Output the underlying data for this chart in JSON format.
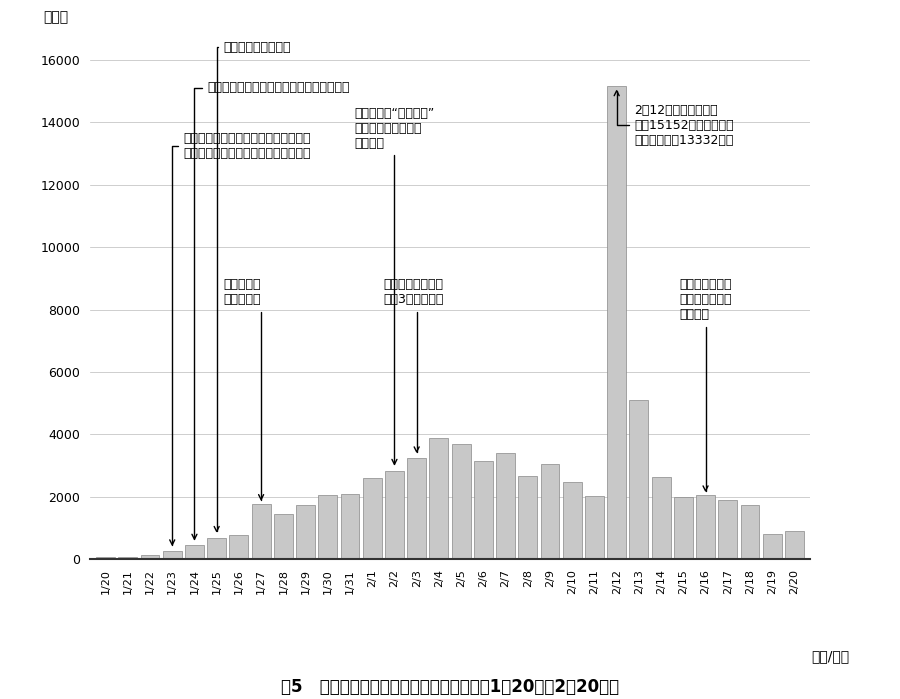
{
  "dates": [
    "1/20",
    "1/21",
    "1/22",
    "1/23",
    "1/24",
    "1/25",
    "1/26",
    "1/27",
    "1/28",
    "1/29",
    "1/30",
    "1/31",
    "2/1",
    "2/2",
    "2/3",
    "2/4",
    "2/5",
    "2/6",
    "2/7",
    "2/8",
    "2/9",
    "2/10",
    "2/11",
    "2/12",
    "2/13",
    "2/14",
    "2/15",
    "2/16",
    "2/17",
    "2/18",
    "2/19",
    "2/20"
  ],
  "values": [
    60,
    77,
    149,
    259,
    444,
    688,
    769,
    1771,
    1459,
    1737,
    2048,
    2102,
    2590,
    2829,
    3235,
    3887,
    3694,
    3143,
    3399,
    2656,
    3062,
    2478,
    2015,
    15152,
    5090,
    2641,
    2009,
    2048,
    1886,
    1749,
    820,
    889
  ],
  "bar_color": "#c8c8c8",
  "bar_edgecolor": "#888888",
  "background_color": "#ffffff",
  "ylim": [
    0,
    16800
  ],
  "yticks": [
    0,
    2000,
    4000,
    6000,
    8000,
    10000,
    12000,
    14000,
    16000
  ],
  "ylabel": "（例）",
  "xlabel_unit": "（月/日）",
  "title": "图5   中国境内新冠肺炎新增确诊病例情况（1月20日至2月20日）"
}
